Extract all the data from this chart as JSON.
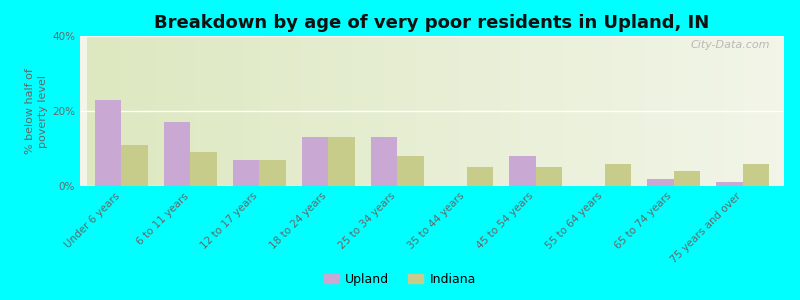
{
  "title": "Breakdown by age of very poor residents in Upland, IN",
  "ylabel": "% below half of\npoverty level",
  "categories": [
    "Under 6 years",
    "6 to 11 years",
    "12 to 17 years",
    "18 to 24 years",
    "25 to 34 years",
    "35 to 44 years",
    "45 to 54 years",
    "55 to 64 years",
    "65 to 74 years",
    "75 years and over"
  ],
  "upland_values": [
    23,
    17,
    7,
    13,
    13,
    0,
    8,
    0,
    2,
    1
  ],
  "indiana_values": [
    11,
    9,
    7,
    13,
    8,
    5,
    5,
    6,
    4,
    6
  ],
  "upland_color": "#c9a8d4",
  "indiana_color": "#c8cc8a",
  "background_color": "#00ffff",
  "plot_bg_top": "#dde8c0",
  "plot_bg_bottom": "#f2f5e8",
  "ylim": [
    0,
    40
  ],
  "yticks": [
    0,
    20,
    40
  ],
  "ytick_labels": [
    "0%",
    "20%",
    "40%"
  ],
  "title_fontsize": 13,
  "axis_label_fontsize": 8,
  "tick_fontsize": 7.5,
  "legend_labels": [
    "Upland",
    "Indiana"
  ],
  "watermark": "City-Data.com",
  "bar_width": 0.38
}
